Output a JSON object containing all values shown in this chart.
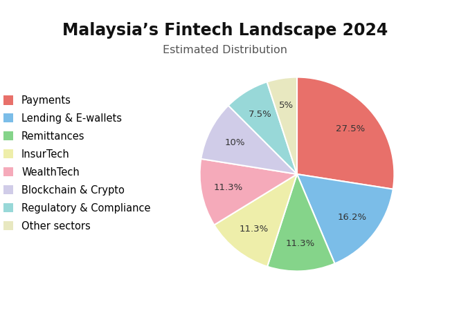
{
  "title": "Malaysia’s Fintech Landscape 2024",
  "subtitle": "Estimated Distribution",
  "slices": [
    {
      "label": "Payments",
      "value": 27.5,
      "color": "#E8706A"
    },
    {
      "label": "Lending & E-wallets",
      "value": 16.2,
      "color": "#7BBDE8"
    },
    {
      "label": "Remittances",
      "value": 11.3,
      "color": "#85D48A"
    },
    {
      "label": "InsurTech",
      "value": 11.3,
      "color": "#EEEEAA"
    },
    {
      "label": "WealthTech",
      "value": 11.3,
      "color": "#F5AABA"
    },
    {
      "label": "Blockchain & Crypto",
      "value": 10.0,
      "color": "#D0CCE8"
    },
    {
      "label": "Regulatory & Compliance",
      "value": 7.5,
      "color": "#98D8D8"
    },
    {
      "label": "Other sectors",
      "value": 5.0,
      "color": "#E8E8C0"
    }
  ],
  "startangle": 90,
  "legend_fontsize": 10.5,
  "title_fontsize": 17,
  "subtitle_fontsize": 11.5,
  "pct_fontsize": 9.5,
  "background_color": "#FFFFFF",
  "pct_distance": 0.72
}
